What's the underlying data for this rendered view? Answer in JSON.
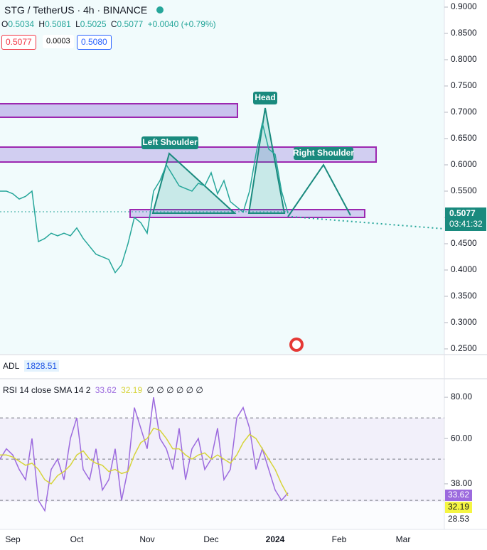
{
  "header": {
    "symbol": "STG / TetherUS · 4h · BINANCE",
    "open_label": "O",
    "open": "0.5034",
    "high_label": "H",
    "high": "0.5081",
    "low_label": "L",
    "low": "0.5025",
    "close_label": "C",
    "close": "0.5077",
    "change": "+0.0040 (+0.79%)"
  },
  "order": {
    "sell": "0.5077",
    "spread": "0.0003",
    "buy": "0.5080"
  },
  "adl": {
    "label": "ADL",
    "value": "1828.51"
  },
  "chart_data": [
    {
      "type": "line",
      "color": "#26a69a",
      "values": [
        0.55,
        0.55,
        0.545,
        0.535,
        0.54,
        0.55,
        0.454,
        0.46,
        0.47,
        0.465,
        0.47,
        0.465,
        0.48,
        0.46,
        0.445,
        0.43,
        0.425,
        0.42,
        0.395,
        0.41,
        0.45,
        0.5,
        0.49,
        0.47,
        0.55,
        0.57,
        0.6,
        0.58,
        0.56,
        0.555,
        0.55,
        0.565,
        0.56,
        0.585,
        0.545,
        0.57,
        0.53,
        0.52,
        0.51,
        0.55,
        0.62,
        0.68,
        0.63,
        0.62,
        0.55,
        0.5077,
        null,
        null,
        null,
        null,
        null,
        null,
        null,
        null,
        null,
        null,
        null,
        null,
        null,
        null,
        null,
        null,
        null,
        null,
        null,
        null,
        null,
        null,
        null,
        null
      ],
      "ylim": [
        0.2405,
        0.9135
      ],
      "yticks": [
        {
          "value": 0.25,
          "label": "0.2500"
        },
        {
          "value": 0.3,
          "label": "0.3000"
        },
        {
          "value": 0.35,
          "label": "0.3500"
        },
        {
          "value": 0.4,
          "label": "0.4000"
        },
        {
          "value": 0.45,
          "label": "0.4500"
        },
        {
          "value": 0.5,
          "label": "0.5000"
        },
        {
          "value": 0.55,
          "label": "0.5500"
        },
        {
          "value": 0.6,
          "label": "0.6000"
        },
        {
          "value": 0.65,
          "label": "0.6500"
        },
        {
          "value": 0.7,
          "label": "0.7000"
        },
        {
          "value": 0.75,
          "label": "0.7500"
        },
        {
          "value": 0.8,
          "label": "0.8000"
        },
        {
          "value": 0.85,
          "label": "0.8500"
        },
        {
          "value": 0.9,
          "label": "0.9000"
        }
      ],
      "annotations": [
        "Head",
        "Left Shoulder",
        "Right Shoulder"
      ],
      "last_price": "0.5077",
      "countdown": "03:41:32"
    },
    {
      "type": "line",
      "title": "RSI 14 close SMA 14 2",
      "flags": "∅ ∅ ∅ ∅ ∅ ∅",
      "categories": [
        null,
        null,
        "Sep",
        null,
        null,
        null,
        null,
        null,
        null,
        null,
        null,
        null,
        "Oct",
        null,
        null,
        null,
        null,
        null,
        null,
        null,
        null,
        null,
        null,
        "Nov",
        null,
        null,
        null,
        null,
        null,
        null,
        null,
        null,
        null,
        "Dec",
        null,
        null,
        null,
        null,
        null,
        null,
        null,
        null,
        null,
        "2024",
        null,
        null,
        null,
        null,
        null,
        null,
        null,
        null,
        null,
        "Feb",
        null,
        null,
        null,
        null,
        null,
        null,
        null,
        null,
        null,
        "Mar",
        null,
        null,
        null,
        null,
        null,
        null
      ],
      "series": [
        {
          "color": "#9c6ade",
          "values": [
            50,
            55,
            52,
            45,
            40,
            60,
            30,
            25,
            45,
            50,
            40,
            60,
            70,
            45,
            40,
            55,
            35,
            40,
            55,
            30,
            45,
            75,
            65,
            55,
            80,
            60,
            55,
            45,
            65,
            40,
            55,
            60,
            45,
            50,
            65,
            40,
            45,
            70,
            75,
            65,
            45,
            55,
            45,
            35,
            30,
            33.62,
            null,
            null,
            null,
            null,
            null,
            null,
            null,
            null,
            null,
            null,
            null,
            null,
            null,
            null,
            null,
            null,
            null,
            null,
            null,
            null,
            null,
            null,
            null,
            null
          ]
        },
        {
          "color": "#d6d43a",
          "values": [
            52,
            52,
            51,
            49,
            47,
            48,
            45,
            40,
            38,
            42,
            44,
            47,
            52,
            54,
            50,
            48,
            47,
            44,
            45,
            43,
            44,
            52,
            58,
            60,
            65,
            64,
            60,
            55,
            55,
            52,
            50,
            52,
            53,
            50,
            52,
            50,
            48,
            52,
            58,
            62,
            60,
            55,
            50,
            45,
            38,
            32.19,
            null,
            null,
            null,
            null,
            null,
            null,
            null,
            null,
            null,
            null,
            null,
            null,
            null,
            null,
            null,
            null,
            null,
            null,
            null,
            null,
            null,
            null,
            null,
            null
          ]
        }
      ],
      "ylim": [
        15.9,
        88.3
      ],
      "yticks": [
        {
          "value": 80,
          "label": "80.00"
        },
        {
          "value": 60,
          "label": "60.00"
        },
        {
          "value": 38,
          "label": "38.00"
        }
      ],
      "levels": [
        70,
        50,
        30
      ],
      "low_tag": "28.53"
    }
  ]
}
